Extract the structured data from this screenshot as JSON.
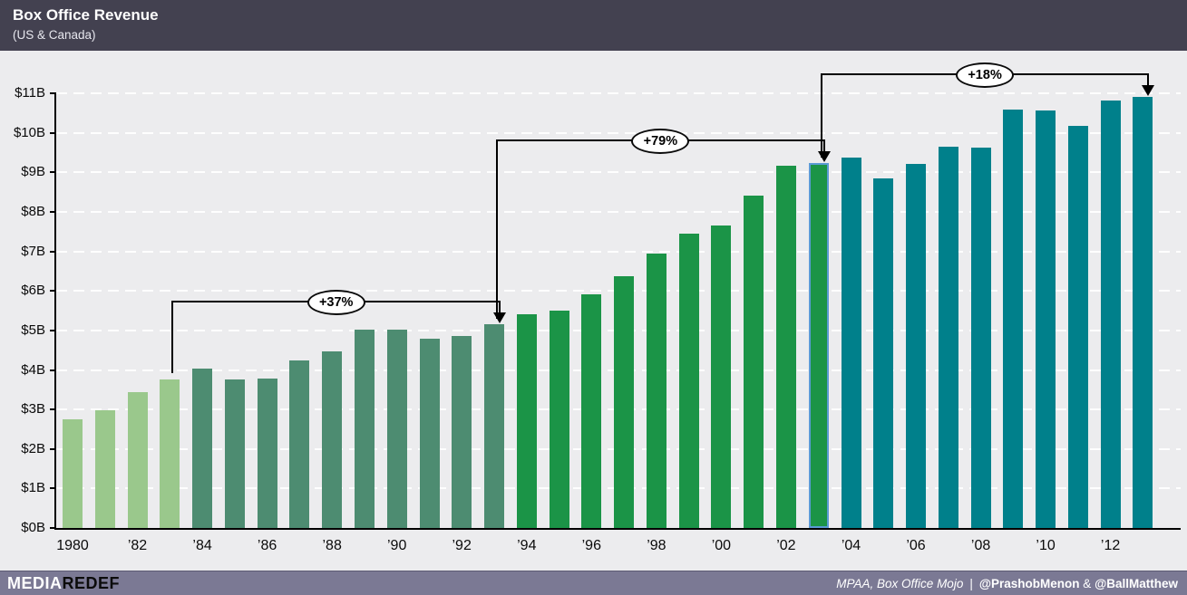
{
  "header": {
    "title": "Box Office Revenue",
    "subtitle": "(US & Canada)"
  },
  "footer": {
    "brand_media": "MEDIA",
    "brand_redef": "REDEF",
    "source": "MPAA, Box Office Mojo",
    "separator": "|",
    "credit1": "@PrashobMenon",
    "credit_join": "&",
    "credit2": "@BallMatthew"
  },
  "chart_data": {
    "type": "bar",
    "title": "Box Office Revenue (US & Canada)",
    "unit": "USD billions",
    "x": [
      1980,
      1981,
      1982,
      1983,
      1984,
      1985,
      1986,
      1987,
      1988,
      1989,
      1990,
      1991,
      1992,
      1993,
      1994,
      1995,
      1996,
      1997,
      1998,
      1999,
      2000,
      2001,
      2002,
      2003,
      2004,
      2005,
      2006,
      2007,
      2008,
      2009,
      2010,
      2011,
      2012,
      2013
    ],
    "values": [
      2.75,
      2.97,
      3.45,
      3.77,
      4.03,
      3.77,
      3.78,
      4.25,
      4.46,
      5.03,
      5.02,
      4.8,
      4.87,
      5.15,
      5.4,
      5.49,
      5.91,
      6.37,
      6.95,
      7.45,
      7.66,
      8.41,
      9.16,
      9.24,
      9.38,
      8.84,
      9.21,
      9.66,
      9.63,
      10.59,
      10.57,
      10.17,
      10.82,
      10.92
    ],
    "ylim": [
      0,
      11
    ],
    "y_tick_labels": [
      "$0B",
      "$1B",
      "$2B",
      "$3B",
      "$4B",
      "$5B",
      "$6B",
      "$7B",
      "$8B",
      "$9B",
      "$10B",
      "$11B"
    ],
    "x_ticks": [
      {
        "year": 1980,
        "label": "1980"
      },
      {
        "year": 1982,
        "label": "’82"
      },
      {
        "year": 1984,
        "label": "’84"
      },
      {
        "year": 1986,
        "label": "’86"
      },
      {
        "year": 1988,
        "label": "’88"
      },
      {
        "year": 1990,
        "label": "’90"
      },
      {
        "year": 1992,
        "label": "’92"
      },
      {
        "year": 1994,
        "label": "’94"
      },
      {
        "year": 1996,
        "label": "’96"
      },
      {
        "year": 1998,
        "label": "’98"
      },
      {
        "year": 2000,
        "label": "’00"
      },
      {
        "year": 2002,
        "label": "’02"
      },
      {
        "year": 2004,
        "label": "’04"
      },
      {
        "year": 2006,
        "label": "’06"
      },
      {
        "year": 2008,
        "label": "’08"
      },
      {
        "year": 2010,
        "label": "’10"
      },
      {
        "year": 2012,
        "label": "’12"
      }
    ],
    "segments": [
      {
        "from_year": 1980,
        "to_year": 1983,
        "color": "#9ac88c"
      },
      {
        "from_year": 1984,
        "to_year": 1993,
        "color": "#4d8c71"
      },
      {
        "from_year": 1994,
        "to_year": 2003,
        "color": "#1b9447"
      },
      {
        "from_year": 2004,
        "to_year": 2013,
        "color": "#00808b"
      }
    ],
    "highlighted_bar": {
      "year": 2003,
      "outline_color": "#5b9bd5"
    },
    "annotations": [
      {
        "label": "+37%",
        "from_year": 1983,
        "to_year": 1993
      },
      {
        "label": "+79%",
        "from_year": 1993,
        "to_year": 2003
      },
      {
        "label": "+18%",
        "from_year": 2003,
        "to_year": 2013
      }
    ],
    "grid": "horizontal white dashed",
    "legend": "none"
  }
}
